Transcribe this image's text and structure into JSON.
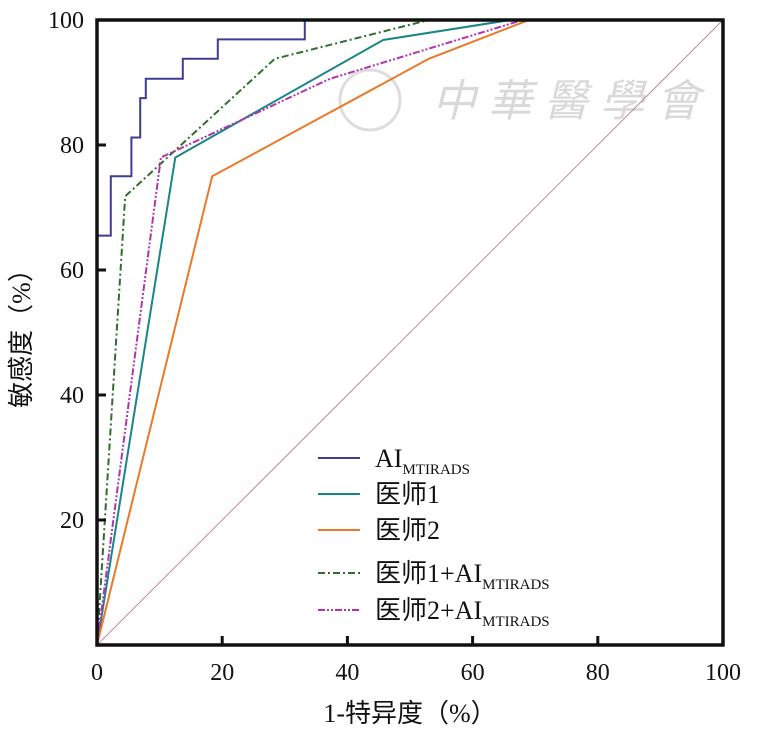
{
  "chart_data": {
    "type": "line",
    "title": "",
    "xlabel": "1-特异度（%）",
    "ylabel": "敏感度（%）",
    "xlim": [
      0,
      100
    ],
    "ylim": [
      0,
      100
    ],
    "xticks": [
      "0",
      "20",
      "40",
      "60",
      "80",
      "100"
    ],
    "yticks": [
      "20",
      "40",
      "60",
      "80",
      "100"
    ],
    "grid": false,
    "legend_placement": "bottom-center",
    "watermark": "中華醫學會",
    "series": [
      {
        "name": "AI",
        "subscript": "MTIRADS",
        "style": "solid",
        "color": "#3d3d96",
        "x": [
          0,
          0,
          2.2,
          2.2,
          5.5,
          5.5,
          6.9,
          6.9,
          7.8,
          7.8,
          13.7,
          13.7,
          19.3,
          19.3,
          33.2,
          33.2,
          100
        ],
        "y": [
          0,
          65.5,
          65.5,
          75,
          75,
          81.2,
          81.2,
          87.5,
          87.5,
          90.6,
          90.6,
          93.8,
          93.8,
          96.9,
          96.9,
          100,
          100
        ]
      },
      {
        "name": "医师1",
        "subscript": "",
        "style": "solid",
        "color": "#1a8585",
        "x": [
          0,
          12.5,
          45.7,
          66,
          100
        ],
        "y": [
          0,
          78,
          96.8,
          100,
          100
        ]
      },
      {
        "name": "医师2",
        "subscript": "",
        "style": "solid",
        "color": "#e87a2a",
        "x": [
          0,
          18.4,
          53,
          69,
          100
        ],
        "y": [
          0,
          75,
          93.8,
          100,
          100
        ]
      },
      {
        "name": "医师1+AI",
        "subscript": "MTIRADS",
        "style": "dashdot",
        "color": "#2f6e2f",
        "x": [
          0,
          4.5,
          28.4,
          53,
          100
        ],
        "y": [
          0,
          71.8,
          93.8,
          100,
          100
        ]
      },
      {
        "name": "医师2+AI",
        "subscript": "MTIRADS",
        "style": "dashdotdot",
        "color": "#b034b0",
        "x": [
          0,
          10.2,
          37.2,
          68,
          100
        ],
        "y": [
          0,
          78,
          90.6,
          100,
          100
        ]
      },
      {
        "name": "reference",
        "subscript": "",
        "style": "diagonal",
        "color": "#b89090",
        "x": [
          0,
          100
        ],
        "y": [
          0,
          100
        ]
      }
    ]
  }
}
